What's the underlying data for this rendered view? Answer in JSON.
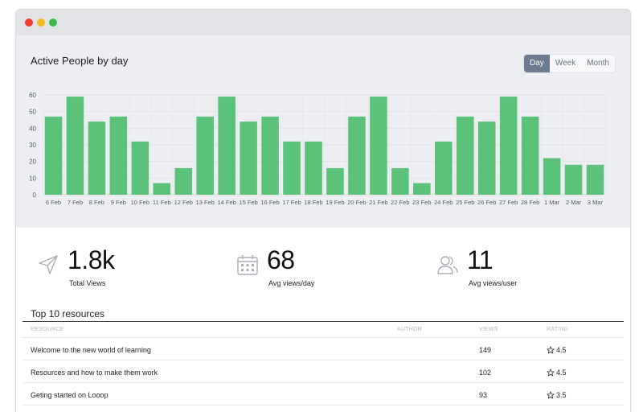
{
  "window": {
    "controls": [
      "close",
      "minimize",
      "maximize"
    ]
  },
  "chart_panel": {
    "title": "Active People by day",
    "range_toggle": {
      "options": [
        "Day",
        "Week",
        "Month"
      ],
      "selected": "Day"
    }
  },
  "chart_data": {
    "type": "bar",
    "title": "Active People by day",
    "categories": [
      "6 Feb",
      "7 Feb",
      "8 Feb",
      "9 Feb",
      "10 Feb",
      "11 Feb",
      "12 Feb",
      "13 Feb",
      "14 Feb",
      "15 Feb",
      "16 Feb",
      "17 Feb",
      "18 Feb",
      "19 Feb",
      "20 Feb",
      "21 Feb",
      "22 Feb",
      "23 Feb",
      "24 Feb",
      "25 Feb",
      "26 Feb",
      "27 Feb",
      "28 Feb",
      "1 Mar",
      "2 Mar",
      "3 Mar"
    ],
    "values": [
      47,
      59,
      44,
      47,
      32,
      7,
      16,
      47,
      59,
      44,
      47,
      32,
      32,
      16,
      47,
      59,
      16,
      7,
      32,
      47,
      44,
      59,
      47,
      22,
      18,
      18
    ],
    "ylim": [
      0,
      60
    ],
    "yticks": [
      0,
      10,
      20,
      30,
      40,
      50,
      60
    ],
    "grid": true,
    "bar_color": "#5bc27a"
  },
  "stats": [
    {
      "icon": "send-icon",
      "value": "1.8k",
      "label": "Total Views"
    },
    {
      "icon": "calendar-icon",
      "value": "68",
      "label": "Avg views/day"
    },
    {
      "icon": "users-icon",
      "value": "11",
      "label": "Avg views/user"
    }
  ],
  "resources": {
    "title": "Top 10 resources",
    "columns": {
      "resource": "RESOURCE",
      "author": "AUTHOR",
      "views": "VIEWS",
      "rating": "RATING"
    },
    "rows": [
      {
        "resource": "Welcome to the new world of learning",
        "author": "",
        "views": "149",
        "rating": "4.5"
      },
      {
        "resource": "Resources and how to make them work",
        "author": "",
        "views": "102",
        "rating": "4.5"
      },
      {
        "resource": "Geting started on Looop",
        "author": "",
        "views": "93",
        "rating": "3.5"
      }
    ]
  }
}
